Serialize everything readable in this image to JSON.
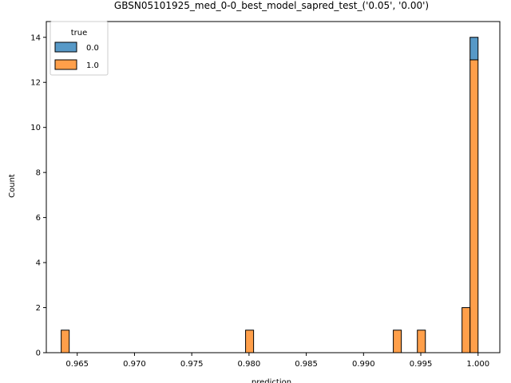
{
  "chart_data": {
    "type": "bar",
    "title": "GBSN05101925_med_0-0_best_model_sapred_test_('0.05', '0.00')",
    "xlabel": "prediction",
    "ylabel": "Count",
    "xlim": [
      0.9623,
      1.0019
    ],
    "ylim": [
      0,
      14.7
    ],
    "x_ticks": [
      {
        "value": 0.965,
        "label": "0.965"
      },
      {
        "value": 0.97,
        "label": "0.970"
      },
      {
        "value": 0.975,
        "label": "0.975"
      },
      {
        "value": 0.98,
        "label": "0.980"
      },
      {
        "value": 0.985,
        "label": "0.985"
      },
      {
        "value": 0.99,
        "label": "0.990"
      },
      {
        "value": 0.995,
        "label": "0.995"
      },
      {
        "value": 1.0,
        "label": "1.000"
      }
    ],
    "y_ticks": [
      {
        "value": 0,
        "label": "0"
      },
      {
        "value": 2,
        "label": "2"
      },
      {
        "value": 4,
        "label": "4"
      },
      {
        "value": 6,
        "label": "6"
      },
      {
        "value": 8,
        "label": "8"
      },
      {
        "value": 10,
        "label": "10"
      },
      {
        "value": 12,
        "label": "12"
      },
      {
        "value": 14,
        "label": "14"
      }
    ],
    "stacked": true,
    "grid": false,
    "legend": {
      "title": "true",
      "placement": "top-left"
    },
    "series": [
      {
        "name": "1.0",
        "color": "#ff7f0e",
        "bins": [
          {
            "x0": 0.9636,
            "x1": 0.9643,
            "count": 1
          },
          {
            "x0": 0.9797,
            "x1": 0.9804,
            "count": 1
          },
          {
            "x0": 0.9926,
            "x1": 0.9933,
            "count": 1
          },
          {
            "x0": 0.9947,
            "x1": 0.9954,
            "count": 1
          },
          {
            "x0": 0.9986,
            "x1": 0.9993,
            "count": 2
          },
          {
            "x0": 0.9993,
            "x1": 1.0,
            "count": 13
          }
        ]
      },
      {
        "name": "0.0",
        "color": "#1f77b4",
        "bins": [
          {
            "x0": 0.9993,
            "x1": 1.0,
            "count": 1
          }
        ]
      }
    ]
  }
}
